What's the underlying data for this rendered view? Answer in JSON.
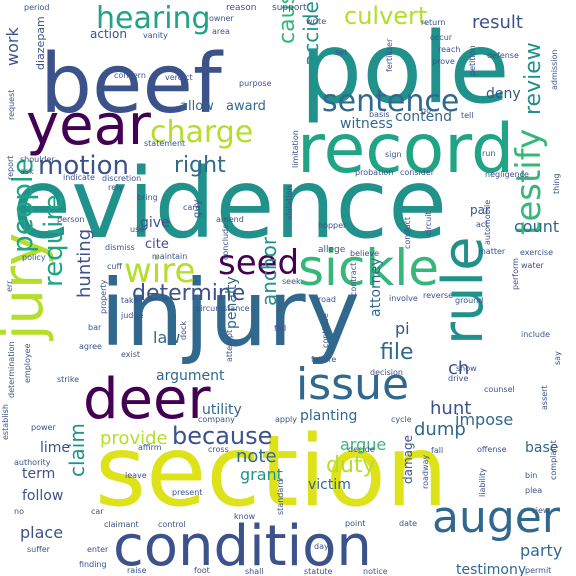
{
  "palette": {
    "dark_purple": "#440154",
    "indigo": "#3b528b",
    "slate_blue": "#31688e",
    "teal_blue": "#287d8e",
    "teal": "#21918c",
    "green_teal": "#20a486",
    "green": "#35b779",
    "lime_green": "#6ece58",
    "yellow_green": "#b5de2b",
    "yellow": "#dde318"
  },
  "words": [
    {
      "text": "evidence",
      "color": "#21918c"
    },
    {
      "text": "injury",
      "color": "#31688e"
    },
    {
      "text": "section",
      "color": "#dde318"
    },
    {
      "text": "pole",
      "color": "#21918c"
    },
    {
      "text": "beef",
      "color": "#3b528b"
    },
    {
      "text": "record",
      "color": "#20a486"
    },
    {
      "text": "year",
      "color": "#440154"
    },
    {
      "text": "condition",
      "color": "#3b528b"
    },
    {
      "text": "deer",
      "color": "#440154"
    },
    {
      "text": "sickle",
      "color": "#35b779"
    },
    {
      "text": "rule",
      "color": "#21918c"
    },
    {
      "text": "jury",
      "color": "#b5de2b"
    },
    {
      "text": "issue",
      "color": "#31688e"
    },
    {
      "text": "auger",
      "color": "#31688e"
    },
    {
      "text": "sentence",
      "color": "#31688e"
    },
    {
      "text": "charge",
      "color": "#b5de2b"
    },
    {
      "text": "hearing",
      "color": "#20a486"
    },
    {
      "text": "wire",
      "color": "#b5de2b"
    },
    {
      "text": "seed",
      "color": "#440154"
    },
    {
      "text": "motion",
      "color": "#3b528b"
    },
    {
      "text": "testify",
      "color": "#35b779"
    },
    {
      "text": "because",
      "color": "#3b528b"
    },
    {
      "text": "people",
      "color": "#20a486"
    },
    {
      "text": "determine",
      "color": "#3b528b"
    },
    {
      "text": "require",
      "color": "#20a486"
    },
    {
      "text": "culvert",
      "color": "#b5de2b"
    },
    {
      "text": "duty",
      "color": "#b5de2b"
    },
    {
      "text": "claim",
      "color": "#21918c"
    },
    {
      "text": "cause",
      "color": "#35b779"
    },
    {
      "text": "right",
      "color": "#31688e"
    },
    {
      "text": "file",
      "color": "#31688e"
    },
    {
      "text": "accident",
      "color": "#21918c"
    },
    {
      "text": "review",
      "color": "#21918c"
    },
    {
      "text": "anchor",
      "color": "#21918c"
    },
    {
      "text": "provide",
      "color": "#b5de2b"
    },
    {
      "text": "dump",
      "color": "#31688e"
    },
    {
      "text": "hunt",
      "color": "#3b528b"
    },
    {
      "text": "hunting",
      "color": "#3b528b"
    },
    {
      "text": "result",
      "color": "#3b528b"
    },
    {
      "text": "note",
      "color": "#31688e"
    },
    {
      "text": "witness",
      "color": "#31688e"
    },
    {
      "text": "work",
      "color": "#3b528b"
    },
    {
      "text": "count",
      "color": "#31688e"
    },
    {
      "text": "law",
      "color": "#31688e"
    },
    {
      "text": "argue",
      "color": "#35b779"
    },
    {
      "text": "grant",
      "color": "#21918c"
    },
    {
      "text": "testimony",
      "color": "#31688e"
    },
    {
      "text": "party",
      "color": "#31688e"
    },
    {
      "text": "place",
      "color": "#3b528b"
    },
    {
      "text": "follow",
      "color": "#3b528b"
    },
    {
      "text": "term",
      "color": "#3b528b"
    },
    {
      "text": "lime",
      "color": "#3b528b"
    },
    {
      "text": "victim",
      "color": "#31688e"
    },
    {
      "text": "planting",
      "color": "#31688e"
    },
    {
      "text": "utility",
      "color": "#31688e"
    },
    {
      "text": "argument",
      "color": "#31688e"
    },
    {
      "text": "attorney",
      "color": "#31688e"
    },
    {
      "text": "impose",
      "color": "#31688e"
    },
    {
      "text": "base",
      "color": "#31688e"
    },
    {
      "text": "penalty",
      "color": "#31688e"
    },
    {
      "text": "contend",
      "color": "#31688e"
    },
    {
      "text": "allow",
      "color": "#31688e"
    },
    {
      "text": "award",
      "color": "#31688e"
    },
    {
      "text": "action",
      "color": "#3b528b"
    },
    {
      "text": "give",
      "color": "#3b528b"
    },
    {
      "text": "deny",
      "color": "#3b528b"
    },
    {
      "text": "cite",
      "color": "#3b528b"
    },
    {
      "text": "pi",
      "color": "#3b528b"
    },
    {
      "text": "ch",
      "color": "#3b528b"
    },
    {
      "text": "damage",
      "color": "#3b528b"
    },
    {
      "text": "par",
      "color": "#3b528b"
    },
    {
      "text": "diazepam",
      "color": "#3b528b"
    },
    {
      "text": "fertilizer",
      "color": "#3b528b"
    },
    {
      "text": "period",
      "color": "#3b528b"
    },
    {
      "text": "reason",
      "color": "#3b528b"
    },
    {
      "text": "support",
      "color": "#3b528b"
    },
    {
      "text": "write",
      "color": "#3b528b"
    },
    {
      "text": "owner",
      "color": "#3b528b"
    },
    {
      "text": "vanity",
      "color": "#3b528b"
    },
    {
      "text": "area",
      "color": "#3b528b"
    },
    {
      "text": "return",
      "color": "#3b528b"
    },
    {
      "text": "occur",
      "color": "#3b528b"
    },
    {
      "text": "reach",
      "color": "#3b528b"
    },
    {
      "text": "prove",
      "color": "#3b528b"
    },
    {
      "text": "defense",
      "color": "#3b528b"
    },
    {
      "text": "petition",
      "color": "#3b528b"
    },
    {
      "text": "admission",
      "color": "#3b528b"
    },
    {
      "text": "set",
      "color": "#3b528b"
    },
    {
      "text": "concern",
      "color": "#3b528b"
    },
    {
      "text": "verdict",
      "color": "#3b528b"
    },
    {
      "text": "purpose",
      "color": "#3b528b"
    },
    {
      "text": "basis",
      "color": "#3b528b"
    },
    {
      "text": "go",
      "color": "#3b528b"
    },
    {
      "text": "tell",
      "color": "#3b528b"
    },
    {
      "text": "request",
      "color": "#3b528b"
    },
    {
      "text": "statement",
      "color": "#3b528b"
    },
    {
      "text": "violation",
      "color": "#3b528b"
    },
    {
      "text": "limitation",
      "color": "#3b528b"
    },
    {
      "text": "sign",
      "color": "#3b528b"
    },
    {
      "text": "run",
      "color": "#3b528b"
    },
    {
      "text": "shoulder",
      "color": "#3b528b"
    },
    {
      "text": "ask",
      "color": "#3b528b"
    },
    {
      "text": "indicate",
      "color": "#3b528b"
    },
    {
      "text": "discretion",
      "color": "#3b528b"
    },
    {
      "text": "probation",
      "color": "#3b528b"
    },
    {
      "text": "consider",
      "color": "#3b528b"
    },
    {
      "text": "negligence",
      "color": "#3b528b"
    },
    {
      "text": "report",
      "color": "#3b528b"
    },
    {
      "text": "rely",
      "color": "#3b528b"
    },
    {
      "text": "bring",
      "color": "#3b528b"
    },
    {
      "text": "guy",
      "color": "#3b528b"
    },
    {
      "text": "circuit",
      "color": "#3b528b"
    },
    {
      "text": "automobile",
      "color": "#3b528b"
    },
    {
      "text": "care",
      "color": "#3b528b"
    },
    {
      "text": "amend",
      "color": "#3b528b"
    },
    {
      "text": "person",
      "color": "#3b528b"
    },
    {
      "text": "use",
      "color": "#3b528b"
    },
    {
      "text": "hopper",
      "color": "#3b528b"
    },
    {
      "text": "conduct",
      "color": "#3b528b"
    },
    {
      "text": "act",
      "color": "#3b528b"
    },
    {
      "text": "matter",
      "color": "#3b528b"
    },
    {
      "text": "exercise",
      "color": "#3b528b"
    },
    {
      "text": "policy",
      "color": "#3b528b"
    },
    {
      "text": "dismiss",
      "color": "#3b528b"
    },
    {
      "text": "maintain",
      "color": "#3b528b"
    },
    {
      "text": "allege",
      "color": "#3b528b"
    },
    {
      "text": "believe",
      "color": "#3b528b"
    },
    {
      "text": "water",
      "color": "#3b528b"
    },
    {
      "text": "cuff",
      "color": "#3b528b"
    },
    {
      "text": "conclude",
      "color": "#3b528b"
    },
    {
      "text": "property",
      "color": "#3b528b"
    },
    {
      "text": "seek",
      "color": "#3b528b"
    },
    {
      "text": "contract",
      "color": "#3b528b"
    },
    {
      "text": "involve",
      "color": "#3b528b"
    },
    {
      "text": "reverse",
      "color": "#3b528b"
    },
    {
      "text": "ground",
      "color": "#3b528b"
    },
    {
      "text": "perform",
      "color": "#3b528b"
    },
    {
      "text": "take",
      "color": "#3b528b"
    },
    {
      "text": "road",
      "color": "#3b528b"
    },
    {
      "text": "judge",
      "color": "#3b528b"
    },
    {
      "text": "circumstance",
      "color": "#3b528b"
    },
    {
      "text": "bar",
      "color": "#3b528b"
    },
    {
      "text": "fail",
      "color": "#3b528b"
    },
    {
      "text": "continue",
      "color": "#3b528b"
    },
    {
      "text": "include",
      "color": "#3b528b"
    },
    {
      "text": "agree",
      "color": "#3b528b"
    },
    {
      "text": "exist",
      "color": "#3b528b"
    },
    {
      "text": "dock",
      "color": "#3b528b"
    },
    {
      "text": "attempt",
      "color": "#3b528b"
    },
    {
      "text": "failure",
      "color": "#3b528b"
    },
    {
      "text": "decision",
      "color": "#3b528b"
    },
    {
      "text": "show",
      "color": "#3b528b"
    },
    {
      "text": "drive",
      "color": "#3b528b"
    },
    {
      "text": "counsel",
      "color": "#3b528b"
    },
    {
      "text": "employee",
      "color": "#3b528b"
    },
    {
      "text": "strike",
      "color": "#3b528b"
    },
    {
      "text": "determination",
      "color": "#3b528b"
    },
    {
      "text": "establish",
      "color": "#3b528b"
    },
    {
      "text": "company",
      "color": "#3b528b"
    },
    {
      "text": "apply",
      "color": "#3b528b"
    },
    {
      "text": "cycle",
      "color": "#3b528b"
    },
    {
      "text": "assert",
      "color": "#3b528b"
    },
    {
      "text": "say",
      "color": "#3b528b"
    },
    {
      "text": "power",
      "color": "#3b528b"
    },
    {
      "text": "affirm",
      "color": "#3b528b"
    },
    {
      "text": "cross",
      "color": "#3b528b"
    },
    {
      "text": "decide",
      "color": "#3b528b"
    },
    {
      "text": "fall",
      "color": "#3b528b"
    },
    {
      "text": "offense",
      "color": "#3b528b"
    },
    {
      "text": "complaint",
      "color": "#3b528b"
    },
    {
      "text": "authority",
      "color": "#3b528b"
    },
    {
      "text": "leave",
      "color": "#3b528b"
    },
    {
      "text": "roadway",
      "color": "#3b528b"
    },
    {
      "text": "liability",
      "color": "#3b528b"
    },
    {
      "text": "bin",
      "color": "#3b528b"
    },
    {
      "text": "plea",
      "color": "#3b528b"
    },
    {
      "text": "present",
      "color": "#3b528b"
    },
    {
      "text": "know",
      "color": "#3b528b"
    },
    {
      "text": "view",
      "color": "#3b528b"
    },
    {
      "text": "no",
      "color": "#3b528b"
    },
    {
      "text": "claimant",
      "color": "#3b528b"
    },
    {
      "text": "control",
      "color": "#3b528b"
    },
    {
      "text": "standard",
      "color": "#3b528b"
    },
    {
      "text": "point",
      "color": "#3b528b"
    },
    {
      "text": "date",
      "color": "#3b528b"
    },
    {
      "text": "car",
      "color": "#3b528b"
    },
    {
      "text": "enter",
      "color": "#3b528b"
    },
    {
      "text": "suffer",
      "color": "#3b528b"
    },
    {
      "text": "finding",
      "color": "#3b528b"
    },
    {
      "text": "raise",
      "color": "#3b528b"
    },
    {
      "text": "foot",
      "color": "#3b528b"
    },
    {
      "text": "shall",
      "color": "#3b528b"
    },
    {
      "text": "statute",
      "color": "#3b528b"
    },
    {
      "text": "notice",
      "color": "#3b528b"
    },
    {
      "text": "permit",
      "color": "#3b528b"
    },
    {
      "text": "day",
      "color": "#3b528b"
    },
    {
      "text": "err",
      "color": "#3b528b"
    },
    {
      "text": "thing",
      "color": "#3b528b"
    }
  ]
}
